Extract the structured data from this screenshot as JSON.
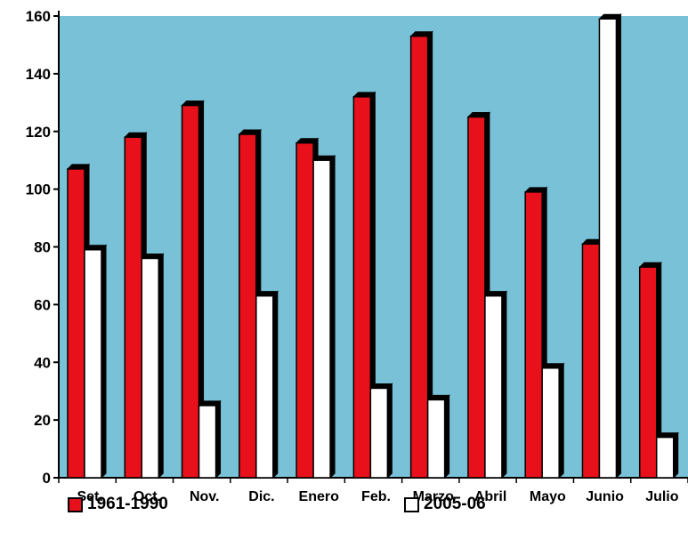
{
  "chart_data": {
    "type": "bar",
    "categories": [
      "Set.",
      "Oct.",
      "Nov.",
      "Dic.",
      "Enero",
      "Feb.",
      "Marzo",
      "Abril",
      "Mayo",
      "Junio",
      "Julio"
    ],
    "series": [
      {
        "name": "1961-1990",
        "values": [
          107,
          118,
          129,
          119,
          116,
          132,
          153,
          125,
          99,
          81,
          73
        ]
      },
      {
        "name": "2005-06",
        "values": [
          79,
          76,
          25,
          63,
          110,
          31,
          27,
          63,
          38,
          159,
          14
        ]
      }
    ],
    "yticks": [
      0,
      20,
      40,
      60,
      80,
      100,
      120,
      140,
      160
    ],
    "ylim": [
      0,
      160
    ],
    "grid": false,
    "legend_position": "bottom",
    "colors": {
      "plot_background": "#79c1d7",
      "series_1": "#e8101a",
      "series_2": "#ffffff"
    }
  }
}
